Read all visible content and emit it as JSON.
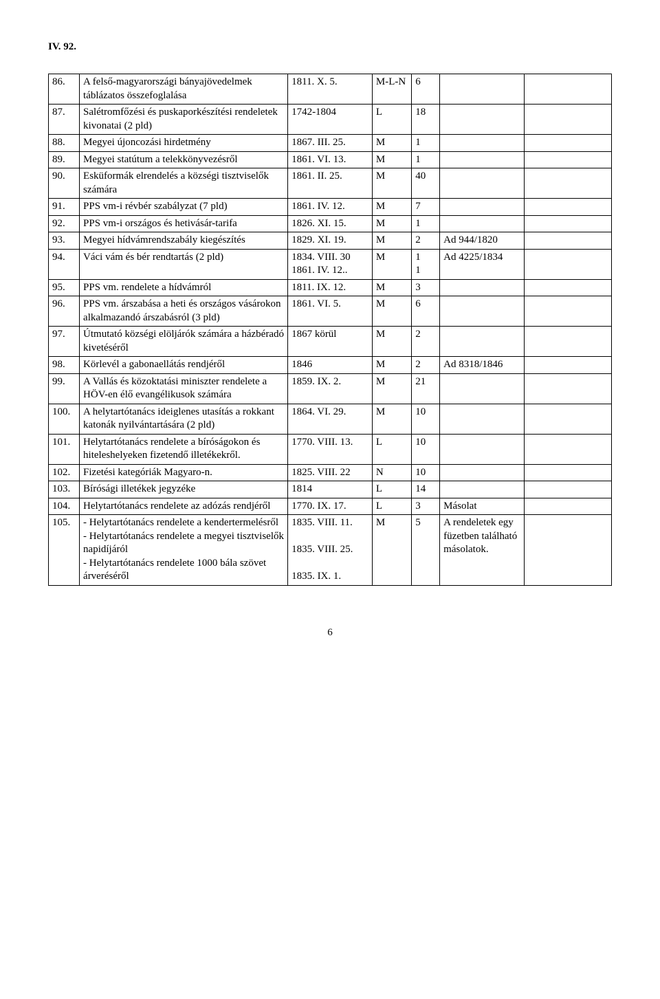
{
  "heading": "IV. 92.",
  "page_number": "6",
  "rows": [
    {
      "num": "86.",
      "desc": "A felső-magyarországi bányajövedelmek táblázatos összefoglalása",
      "date": "1811. X. 5.",
      "typ": "M-L-N",
      "pg": "6",
      "note": "",
      "ext": ""
    },
    {
      "num": "87.",
      "desc": "Salétromfőzési és puskaporkészítési rendeletek kivonatai (2 pld)",
      "date": "1742-1804",
      "typ": "L",
      "pg": "18",
      "note": "",
      "ext": ""
    },
    {
      "num": "88.",
      "desc": "Megyei újoncozási hirdetmény",
      "date": "1867. III. 25.",
      "typ": "M",
      "pg": "1",
      "note": "",
      "ext": ""
    },
    {
      "num": "89.",
      "desc": "Megyei statútum a telekkönyvezésről",
      "date": "1861. VI. 13.",
      "typ": "M",
      "pg": "1",
      "note": "",
      "ext": ""
    },
    {
      "num": "90.",
      "desc": "Esküformák elrendelés a községi tisztviselők számára",
      "date": "1861. II. 25.",
      "typ": "M",
      "pg": "40",
      "note": "",
      "ext": ""
    },
    {
      "num": "91.",
      "desc": "PPS vm-i révbér szabályzat (7 pld)",
      "date": "1861. IV. 12.",
      "typ": "M",
      "pg": "7",
      "note": "",
      "ext": ""
    },
    {
      "num": "92.",
      "desc": "PPS vm-i országos és hetivásár-tarifa",
      "date": "1826. XI. 15.",
      "typ": "M",
      "pg": "1",
      "note": "",
      "ext": ""
    },
    {
      "num": "93.",
      "desc": "Megyei hídvámrendszabály kiegészítés",
      "date": "1829. XI. 19.",
      "typ": "M",
      "pg": "2",
      "note": "Ad 944/1820",
      "ext": ""
    },
    {
      "num": "94.",
      "desc": "Váci vám és bér rendtartás (2 pld)",
      "date": "1834. VIII. 30\n1861. IV. 12..",
      "typ": "M",
      "pg": "1\n1",
      "note": "Ad 4225/1834",
      "ext": ""
    },
    {
      "num": "95.",
      "desc": "PPS vm. rendelete a hídvámról",
      "date": "1811. IX. 12.",
      "typ": "M",
      "pg": "3",
      "note": "",
      "ext": ""
    },
    {
      "num": "96.",
      "desc": "PPS vm. árszabása a heti és országos vásárokon alkalmazandó árszabásról (3 pld)",
      "date": "1861. VI. 5.",
      "typ": "M",
      "pg": "6",
      "note": "",
      "ext": ""
    },
    {
      "num": "97.",
      "desc": "Útmutató községi elöljárók számára a házbéradó kivetéséről",
      "date": "1867 körül",
      "typ": "M",
      "pg": "2",
      "note": "",
      "ext": ""
    },
    {
      "num": "98.",
      "desc": "Körlevél a gabonaellátás rendjéről",
      "date": "1846",
      "typ": "M",
      "pg": "2",
      "note": "Ad 8318/1846",
      "ext": ""
    },
    {
      "num": "99.",
      "desc": "A Vallás és közoktatási miniszter rendelete a HÖV-en élő evangélikusok számára",
      "date": "1859. IX. 2.",
      "typ": "M",
      "pg": "21",
      "note": "",
      "ext": ""
    },
    {
      "num": "100.",
      "desc": "A helytartótanács ideiglenes utasítás a rokkant katonák nyilvántartására (2 pld)",
      "date": "1864. VI. 29.",
      "typ": "M",
      "pg": "10",
      "note": "",
      "ext": ""
    },
    {
      "num": "101.",
      "desc": "Helytartótanács rendelete a bíróságokon és hiteleshelyeken fizetendő illetékekről.",
      "date": "1770. VIII. 13.",
      "typ": "L",
      "pg": "10",
      "note": "",
      "ext": ""
    },
    {
      "num": "102.",
      "desc": "Fizetési kategóriák Magyaro-n.",
      "date": "1825. VIII. 22",
      "typ": "N",
      "pg": "10",
      "note": "",
      "ext": ""
    },
    {
      "num": "103.",
      "desc": "Bírósági illetékek jegyzéke",
      "date": "1814",
      "typ": "L",
      "pg": "14",
      "note": "",
      "ext": ""
    },
    {
      "num": "104.",
      "desc": "Helytartótanács rendelete az adózás rendjéről",
      "date": "1770. IX. 17.",
      "typ": "L",
      "pg": "3",
      "note": "Másolat",
      "ext": ""
    },
    {
      "num": "105.",
      "desc": "- Helytartótanács rendelete a kendertermelésről\n- Helytartótanács rendelete a megyei tisztviselők napidíjáról\n- Helytartótanács rendelete 1000 bála szövet árveréséről",
      "date": "1835. VIII. 11.\n\n1835. VIII. 25.\n\n1835. IX. 1.",
      "typ": "M",
      "pg": "5",
      "note": "A rendeletek egy füzetben található másolatok.",
      "ext": ""
    }
  ]
}
